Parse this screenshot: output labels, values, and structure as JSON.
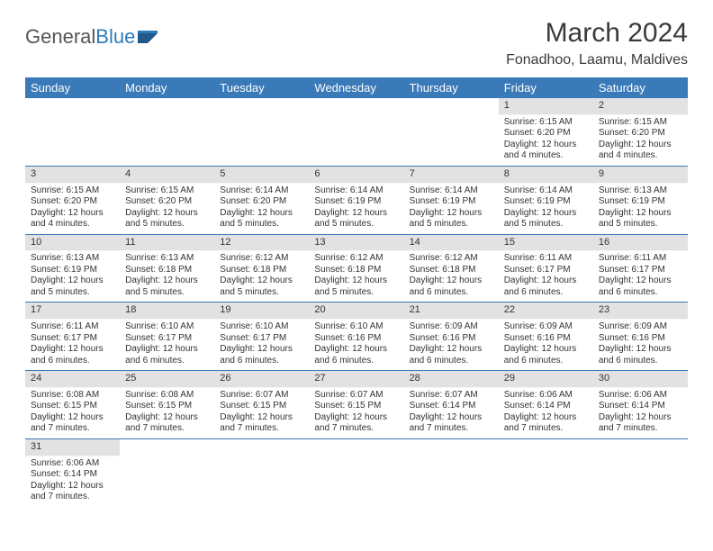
{
  "logo": {
    "text1": "General",
    "text2": "Blue"
  },
  "title": "March 2024",
  "location": "Fonadhoo, Laamu, Maldives",
  "colors": {
    "header_bar": "#3a7ab8",
    "daynum_bg": "#e2e2e2",
    "row_border": "#3a7ab8",
    "text": "#333333",
    "logo_blue": "#2b7bba"
  },
  "weekdays": [
    "Sunday",
    "Monday",
    "Tuesday",
    "Wednesday",
    "Thursday",
    "Friday",
    "Saturday"
  ],
  "weeks": [
    [
      null,
      null,
      null,
      null,
      null,
      {
        "day": "1",
        "sunrise": "Sunrise: 6:15 AM",
        "sunset": "Sunset: 6:20 PM",
        "daylight": "Daylight: 12 hours and 4 minutes."
      },
      {
        "day": "2",
        "sunrise": "Sunrise: 6:15 AM",
        "sunset": "Sunset: 6:20 PM",
        "daylight": "Daylight: 12 hours and 4 minutes."
      }
    ],
    [
      {
        "day": "3",
        "sunrise": "Sunrise: 6:15 AM",
        "sunset": "Sunset: 6:20 PM",
        "daylight": "Daylight: 12 hours and 4 minutes."
      },
      {
        "day": "4",
        "sunrise": "Sunrise: 6:15 AM",
        "sunset": "Sunset: 6:20 PM",
        "daylight": "Daylight: 12 hours and 5 minutes."
      },
      {
        "day": "5",
        "sunrise": "Sunrise: 6:14 AM",
        "sunset": "Sunset: 6:20 PM",
        "daylight": "Daylight: 12 hours and 5 minutes."
      },
      {
        "day": "6",
        "sunrise": "Sunrise: 6:14 AM",
        "sunset": "Sunset: 6:19 PM",
        "daylight": "Daylight: 12 hours and 5 minutes."
      },
      {
        "day": "7",
        "sunrise": "Sunrise: 6:14 AM",
        "sunset": "Sunset: 6:19 PM",
        "daylight": "Daylight: 12 hours and 5 minutes."
      },
      {
        "day": "8",
        "sunrise": "Sunrise: 6:14 AM",
        "sunset": "Sunset: 6:19 PM",
        "daylight": "Daylight: 12 hours and 5 minutes."
      },
      {
        "day": "9",
        "sunrise": "Sunrise: 6:13 AM",
        "sunset": "Sunset: 6:19 PM",
        "daylight": "Daylight: 12 hours and 5 minutes."
      }
    ],
    [
      {
        "day": "10",
        "sunrise": "Sunrise: 6:13 AM",
        "sunset": "Sunset: 6:19 PM",
        "daylight": "Daylight: 12 hours and 5 minutes."
      },
      {
        "day": "11",
        "sunrise": "Sunrise: 6:13 AM",
        "sunset": "Sunset: 6:18 PM",
        "daylight": "Daylight: 12 hours and 5 minutes."
      },
      {
        "day": "12",
        "sunrise": "Sunrise: 6:12 AM",
        "sunset": "Sunset: 6:18 PM",
        "daylight": "Daylight: 12 hours and 5 minutes."
      },
      {
        "day": "13",
        "sunrise": "Sunrise: 6:12 AM",
        "sunset": "Sunset: 6:18 PM",
        "daylight": "Daylight: 12 hours and 5 minutes."
      },
      {
        "day": "14",
        "sunrise": "Sunrise: 6:12 AM",
        "sunset": "Sunset: 6:18 PM",
        "daylight": "Daylight: 12 hours and 6 minutes."
      },
      {
        "day": "15",
        "sunrise": "Sunrise: 6:11 AM",
        "sunset": "Sunset: 6:17 PM",
        "daylight": "Daylight: 12 hours and 6 minutes."
      },
      {
        "day": "16",
        "sunrise": "Sunrise: 6:11 AM",
        "sunset": "Sunset: 6:17 PM",
        "daylight": "Daylight: 12 hours and 6 minutes."
      }
    ],
    [
      {
        "day": "17",
        "sunrise": "Sunrise: 6:11 AM",
        "sunset": "Sunset: 6:17 PM",
        "daylight": "Daylight: 12 hours and 6 minutes."
      },
      {
        "day": "18",
        "sunrise": "Sunrise: 6:10 AM",
        "sunset": "Sunset: 6:17 PM",
        "daylight": "Daylight: 12 hours and 6 minutes."
      },
      {
        "day": "19",
        "sunrise": "Sunrise: 6:10 AM",
        "sunset": "Sunset: 6:17 PM",
        "daylight": "Daylight: 12 hours and 6 minutes."
      },
      {
        "day": "20",
        "sunrise": "Sunrise: 6:10 AM",
        "sunset": "Sunset: 6:16 PM",
        "daylight": "Daylight: 12 hours and 6 minutes."
      },
      {
        "day": "21",
        "sunrise": "Sunrise: 6:09 AM",
        "sunset": "Sunset: 6:16 PM",
        "daylight": "Daylight: 12 hours and 6 minutes."
      },
      {
        "day": "22",
        "sunrise": "Sunrise: 6:09 AM",
        "sunset": "Sunset: 6:16 PM",
        "daylight": "Daylight: 12 hours and 6 minutes."
      },
      {
        "day": "23",
        "sunrise": "Sunrise: 6:09 AM",
        "sunset": "Sunset: 6:16 PM",
        "daylight": "Daylight: 12 hours and 6 minutes."
      }
    ],
    [
      {
        "day": "24",
        "sunrise": "Sunrise: 6:08 AM",
        "sunset": "Sunset: 6:15 PM",
        "daylight": "Daylight: 12 hours and 7 minutes."
      },
      {
        "day": "25",
        "sunrise": "Sunrise: 6:08 AM",
        "sunset": "Sunset: 6:15 PM",
        "daylight": "Daylight: 12 hours and 7 minutes."
      },
      {
        "day": "26",
        "sunrise": "Sunrise: 6:07 AM",
        "sunset": "Sunset: 6:15 PM",
        "daylight": "Daylight: 12 hours and 7 minutes."
      },
      {
        "day": "27",
        "sunrise": "Sunrise: 6:07 AM",
        "sunset": "Sunset: 6:15 PM",
        "daylight": "Daylight: 12 hours and 7 minutes."
      },
      {
        "day": "28",
        "sunrise": "Sunrise: 6:07 AM",
        "sunset": "Sunset: 6:14 PM",
        "daylight": "Daylight: 12 hours and 7 minutes."
      },
      {
        "day": "29",
        "sunrise": "Sunrise: 6:06 AM",
        "sunset": "Sunset: 6:14 PM",
        "daylight": "Daylight: 12 hours and 7 minutes."
      },
      {
        "day": "30",
        "sunrise": "Sunrise: 6:06 AM",
        "sunset": "Sunset: 6:14 PM",
        "daylight": "Daylight: 12 hours and 7 minutes."
      }
    ],
    [
      {
        "day": "31",
        "sunrise": "Sunrise: 6:06 AM",
        "sunset": "Sunset: 6:14 PM",
        "daylight": "Daylight: 12 hours and 7 minutes."
      },
      null,
      null,
      null,
      null,
      null,
      null
    ]
  ]
}
